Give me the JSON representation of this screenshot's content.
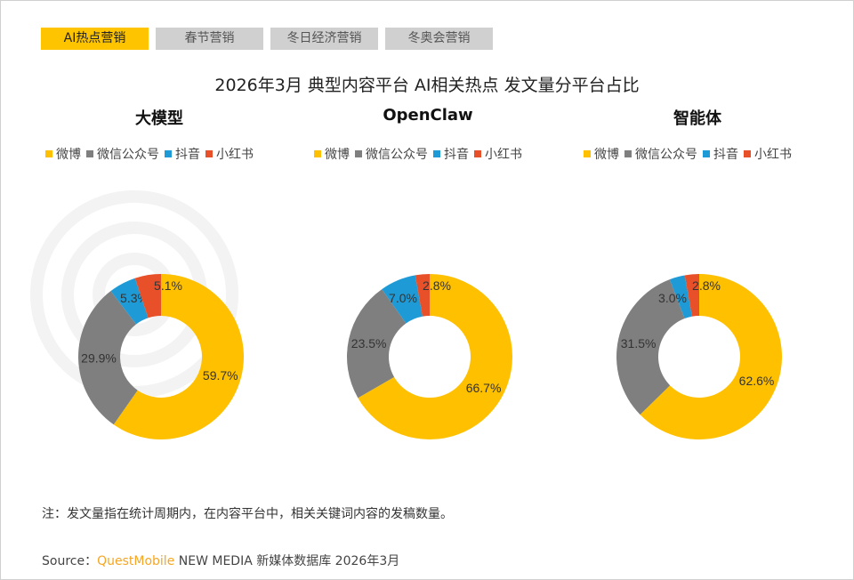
{
  "tabs": [
    {
      "label": "AI热点营销",
      "active": true
    },
    {
      "label": "春节营销"
    },
    {
      "label": "冬日经济营销"
    },
    {
      "label": "冬奥会营销"
    }
  ],
  "watermark": "QUESTMOBILE",
  "colors": {
    "微博": "#ffc000",
    "微信公众号": "#7f7f7f",
    "抖音": "#1e9bd7",
    "小红书": "#e8502a"
  },
  "chart_data": {
    "title": "2026年3月 典型内容平台 AI相关热点 发文量分平台占比",
    "type": "pie",
    "legend": [
      "微博",
      "微信公众号",
      "抖音",
      "小红书"
    ],
    "charts": [
      {
        "title": "大模型",
        "values": [
          59.7,
          29.9,
          5.3,
          5.1
        ],
        "labels": [
          "59.7%",
          "29.9%",
          "5.3%",
          "5.1%"
        ]
      },
      {
        "title": "OpenClaw",
        "values": [
          66.7,
          23.5,
          7.0,
          2.8
        ],
        "labels": [
          "66.7%",
          "23.5%",
          "7.0%",
          "2.8%"
        ]
      },
      {
        "title": "智能体",
        "values": [
          62.6,
          31.5,
          3.0,
          2.8
        ],
        "labels": [
          "62.6%",
          "31.5%",
          "3.0%",
          "2.8%"
        ]
      }
    ]
  },
  "note": "注：发文量指在统计周期内，在内容平台中，相关关键词内容的发稿数量。",
  "source": {
    "prefix": "Source：",
    "brand": "QuestMobile",
    "rest": " NEW MEDIA 新媒体数据库 2026年3月"
  }
}
